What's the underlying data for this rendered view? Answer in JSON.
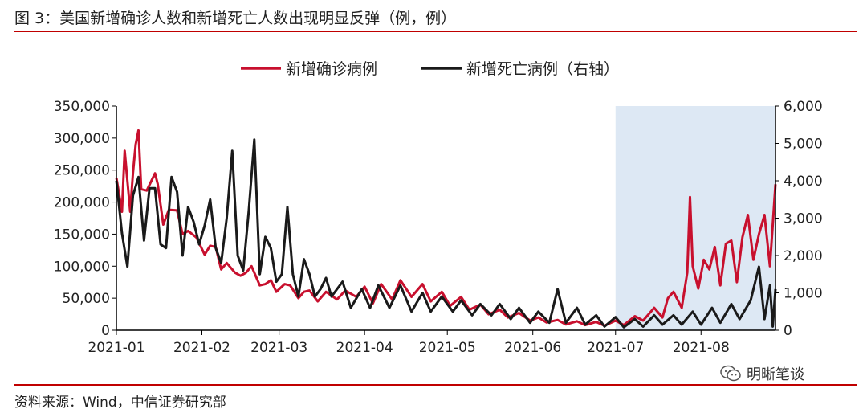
{
  "figure": {
    "title": "图 3：美国新增确诊人数和新增死亡人数出现明显反弹（例，例）",
    "source": "资料来源：Wind，中信证券研究部",
    "watermark": "明晰笔谈",
    "watermark_icon": "wechat-icon"
  },
  "chart_data": {
    "type": "line",
    "x_ticks": [
      "2021-01",
      "2021-02",
      "2021-03",
      "2021-04",
      "2021-05",
      "2021-06",
      "2021-07",
      "2021-08"
    ],
    "x_start": "2021-01-01",
    "x_end": "2021-08-28",
    "y_left": {
      "min": 0,
      "max": 350000,
      "ticks": [
        0,
        50000,
        100000,
        150000,
        200000,
        250000,
        300000,
        350000
      ],
      "tick_labels": [
        "0",
        "50,000",
        "100,000",
        "150,000",
        "200,000",
        "250,000",
        "300,000",
        "350,000"
      ]
    },
    "y_right": {
      "min": 0,
      "max": 6000,
      "ticks": [
        0,
        1000,
        2000,
        3000,
        4000,
        5000,
        6000
      ],
      "tick_labels": [
        "0",
        "1,000",
        "2,000",
        "3,000",
        "4,000",
        "5,000",
        "6,000"
      ]
    },
    "shaded_region": {
      "start": "2021-07-01",
      "end": "2021-08-28",
      "color": "#dde8f4"
    },
    "legend_position": "top-center",
    "series": [
      {
        "name": "新增确诊病例",
        "axis": "left",
        "color": "#c8102e",
        "points": [
          [
            "2021-01-01",
            238000
          ],
          [
            "2021-01-03",
            185000
          ],
          [
            "2021-01-04",
            280000
          ],
          [
            "2021-01-06",
            185000
          ],
          [
            "2021-01-07",
            245000
          ],
          [
            "2021-01-08",
            290000
          ],
          [
            "2021-01-09",
            312000
          ],
          [
            "2021-01-10",
            220000
          ],
          [
            "2021-01-12",
            218000
          ],
          [
            "2021-01-15",
            245000
          ],
          [
            "2021-01-16",
            228000
          ],
          [
            "2021-01-18",
            165000
          ],
          [
            "2021-01-20",
            188000
          ],
          [
            "2021-01-23",
            187000
          ],
          [
            "2021-01-25",
            150000
          ],
          [
            "2021-01-27",
            155000
          ],
          [
            "2021-01-30",
            145000
          ],
          [
            "2021-02-02",
            118000
          ],
          [
            "2021-02-04",
            132000
          ],
          [
            "2021-02-06",
            130000
          ],
          [
            "2021-02-08",
            95000
          ],
          [
            "2021-02-10",
            105000
          ],
          [
            "2021-02-13",
            90000
          ],
          [
            "2021-02-15",
            85000
          ],
          [
            "2021-02-17",
            90000
          ],
          [
            "2021-02-19",
            100000
          ],
          [
            "2021-02-22",
            70000
          ],
          [
            "2021-02-24",
            72000
          ],
          [
            "2021-02-26",
            78000
          ],
          [
            "2021-02-28",
            60000
          ],
          [
            "2021-03-03",
            72000
          ],
          [
            "2021-03-05",
            70000
          ],
          [
            "2021-03-08",
            50000
          ],
          [
            "2021-03-10",
            60000
          ],
          [
            "2021-03-12",
            62000
          ],
          [
            "2021-03-15",
            45000
          ],
          [
            "2021-03-18",
            60000
          ],
          [
            "2021-03-22",
            48000
          ],
          [
            "2021-03-25",
            62000
          ],
          [
            "2021-03-29",
            52000
          ],
          [
            "2021-04-01",
            68000
          ],
          [
            "2021-04-04",
            42000
          ],
          [
            "2021-04-07",
            72000
          ],
          [
            "2021-04-11",
            48000
          ],
          [
            "2021-04-14",
            78000
          ],
          [
            "2021-04-18",
            52000
          ],
          [
            "2021-04-22",
            72000
          ],
          [
            "2021-04-25",
            45000
          ],
          [
            "2021-04-29",
            60000
          ],
          [
            "2021-05-02",
            38000
          ],
          [
            "2021-05-06",
            52000
          ],
          [
            "2021-05-09",
            32000
          ],
          [
            "2021-05-13",
            40000
          ],
          [
            "2021-05-16",
            25000
          ],
          [
            "2021-05-20",
            32000
          ],
          [
            "2021-05-23",
            20000
          ],
          [
            "2021-05-27",
            27000
          ],
          [
            "2021-05-31",
            15000
          ],
          [
            "2021-06-03",
            20000
          ],
          [
            "2021-06-06",
            12000
          ],
          [
            "2021-06-10",
            16000
          ],
          [
            "2021-06-13",
            9000
          ],
          [
            "2021-06-17",
            14000
          ],
          [
            "2021-06-20",
            8000
          ],
          [
            "2021-06-24",
            13000
          ],
          [
            "2021-06-27",
            7000
          ],
          [
            "2021-07-01",
            15000
          ],
          [
            "2021-07-04",
            8000
          ],
          [
            "2021-07-08",
            22000
          ],
          [
            "2021-07-11",
            15000
          ],
          [
            "2021-07-15",
            35000
          ],
          [
            "2021-07-18",
            20000
          ],
          [
            "2021-07-20",
            50000
          ],
          [
            "2021-07-22",
            60000
          ],
          [
            "2021-07-25",
            35000
          ],
          [
            "2021-07-27",
            90000
          ],
          [
            "2021-07-28",
            208000
          ],
          [
            "2021-07-29",
            100000
          ],
          [
            "2021-07-31",
            65000
          ],
          [
            "2021-08-02",
            110000
          ],
          [
            "2021-08-04",
            95000
          ],
          [
            "2021-08-06",
            130000
          ],
          [
            "2021-08-08",
            70000
          ],
          [
            "2021-08-10",
            135000
          ],
          [
            "2021-08-12",
            140000
          ],
          [
            "2021-08-14",
            75000
          ],
          [
            "2021-08-16",
            145000
          ],
          [
            "2021-08-18",
            180000
          ],
          [
            "2021-08-20",
            110000
          ],
          [
            "2021-08-22",
            150000
          ],
          [
            "2021-08-24",
            180000
          ],
          [
            "2021-08-26",
            100000
          ],
          [
            "2021-08-28",
            228000
          ]
        ]
      },
      {
        "name": "新增死亡病例（右轴）",
        "axis": "right",
        "color": "#1a1a1a",
        "points": [
          [
            "2021-01-01",
            4000
          ],
          [
            "2021-01-03",
            2600
          ],
          [
            "2021-01-05",
            1700
          ],
          [
            "2021-01-07",
            3600
          ],
          [
            "2021-01-09",
            4100
          ],
          [
            "2021-01-11",
            2400
          ],
          [
            "2021-01-13",
            3800
          ],
          [
            "2021-01-15",
            3800
          ],
          [
            "2021-01-17",
            2300
          ],
          [
            "2021-01-19",
            2200
          ],
          [
            "2021-01-21",
            4100
          ],
          [
            "2021-01-23",
            3700
          ],
          [
            "2021-01-25",
            2000
          ],
          [
            "2021-01-27",
            3300
          ],
          [
            "2021-01-29",
            2900
          ],
          [
            "2021-01-31",
            2300
          ],
          [
            "2021-02-02",
            2800
          ],
          [
            "2021-02-04",
            3500
          ],
          [
            "2021-02-06",
            2200
          ],
          [
            "2021-02-08",
            1800
          ],
          [
            "2021-02-10",
            3000
          ],
          [
            "2021-02-12",
            4800
          ],
          [
            "2021-02-14",
            2000
          ],
          [
            "2021-02-16",
            1600
          ],
          [
            "2021-02-18",
            3200
          ],
          [
            "2021-02-20",
            5100
          ],
          [
            "2021-02-22",
            1500
          ],
          [
            "2021-02-24",
            2500
          ],
          [
            "2021-02-26",
            2200
          ],
          [
            "2021-02-28",
            1300
          ],
          [
            "2021-03-02",
            1500
          ],
          [
            "2021-03-04",
            3300
          ],
          [
            "2021-03-06",
            1500
          ],
          [
            "2021-03-08",
            900
          ],
          [
            "2021-03-10",
            1900
          ],
          [
            "2021-03-12",
            1500
          ],
          [
            "2021-03-14",
            900
          ],
          [
            "2021-03-16",
            1100
          ],
          [
            "2021-03-18",
            1400
          ],
          [
            "2021-03-20",
            900
          ],
          [
            "2021-03-24",
            1300
          ],
          [
            "2021-03-27",
            600
          ],
          [
            "2021-03-31",
            1100
          ],
          [
            "2021-04-03",
            600
          ],
          [
            "2021-04-06",
            1200
          ],
          [
            "2021-04-10",
            600
          ],
          [
            "2021-04-14",
            1200
          ],
          [
            "2021-04-18",
            500
          ],
          [
            "2021-04-22",
            1000
          ],
          [
            "2021-04-25",
            500
          ],
          [
            "2021-04-29",
            900
          ],
          [
            "2021-05-03",
            500
          ],
          [
            "2021-05-06",
            800
          ],
          [
            "2021-05-10",
            400
          ],
          [
            "2021-05-13",
            700
          ],
          [
            "2021-05-17",
            400
          ],
          [
            "2021-05-20",
            700
          ],
          [
            "2021-05-24",
            300
          ],
          [
            "2021-05-27",
            600
          ],
          [
            "2021-05-31",
            200
          ],
          [
            "2021-06-03",
            500
          ],
          [
            "2021-06-07",
            200
          ],
          [
            "2021-06-10",
            1100
          ],
          [
            "2021-06-13",
            200
          ],
          [
            "2021-06-17",
            600
          ],
          [
            "2021-06-20",
            150
          ],
          [
            "2021-06-24",
            400
          ],
          [
            "2021-06-27",
            100
          ],
          [
            "2021-07-01",
            350
          ],
          [
            "2021-07-04",
            80
          ],
          [
            "2021-07-08",
            300
          ],
          [
            "2021-07-11",
            100
          ],
          [
            "2021-07-15",
            400
          ],
          [
            "2021-07-18",
            150
          ],
          [
            "2021-07-22",
            400
          ],
          [
            "2021-07-25",
            150
          ],
          [
            "2021-07-29",
            500
          ],
          [
            "2021-08-01",
            150
          ],
          [
            "2021-08-05",
            600
          ],
          [
            "2021-08-08",
            200
          ],
          [
            "2021-08-12",
            700
          ],
          [
            "2021-08-15",
            300
          ],
          [
            "2021-08-19",
            800
          ],
          [
            "2021-08-22",
            1700
          ],
          [
            "2021-08-24",
            300
          ],
          [
            "2021-08-26",
            1200
          ],
          [
            "2021-08-27",
            100
          ],
          [
            "2021-08-28",
            1100
          ]
        ]
      }
    ]
  }
}
